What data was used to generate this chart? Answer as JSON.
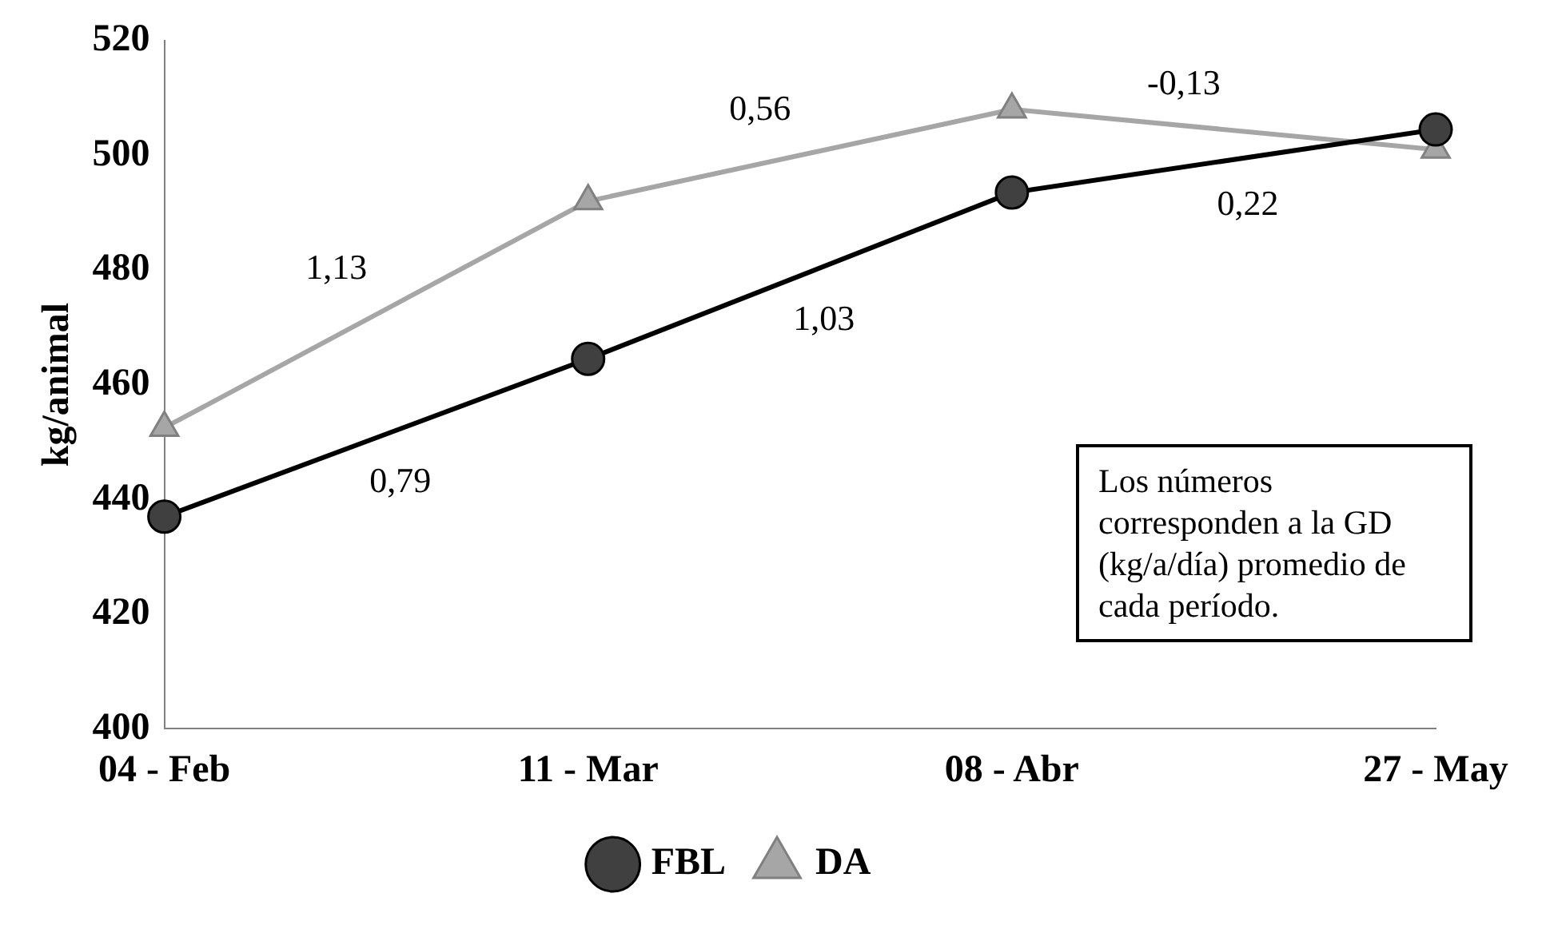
{
  "chart_data": {
    "type": "line",
    "ylabel": "kg/animal",
    "categories": [
      "04 - Feb",
      "11 - Mar",
      "08 - Abr",
      "27 - May"
    ],
    "series": [
      {
        "name": "FBL",
        "color": "#000000",
        "values": [
          437,
          464.5,
          493.5,
          504.5
        ],
        "marker": "circle"
      },
      {
        "name": "DA",
        "color": "#a6a6a6",
        "values": [
          452.5,
          492,
          508,
          501
        ],
        "marker": "triangle"
      }
    ],
    "ylim": [
      400,
      520
    ],
    "yticks": [
      400,
      420,
      440,
      460,
      480,
      500,
      520
    ],
    "grid": false,
    "legend": "bottom",
    "line_style": "solid",
    "annotations": [
      "0,79",
      "1,03",
      "0,22",
      "1,13",
      "0,56",
      "-0,13",
      "Los números corresponden a la GD (kg/a/día) promedio de cada período."
    ]
  }
}
